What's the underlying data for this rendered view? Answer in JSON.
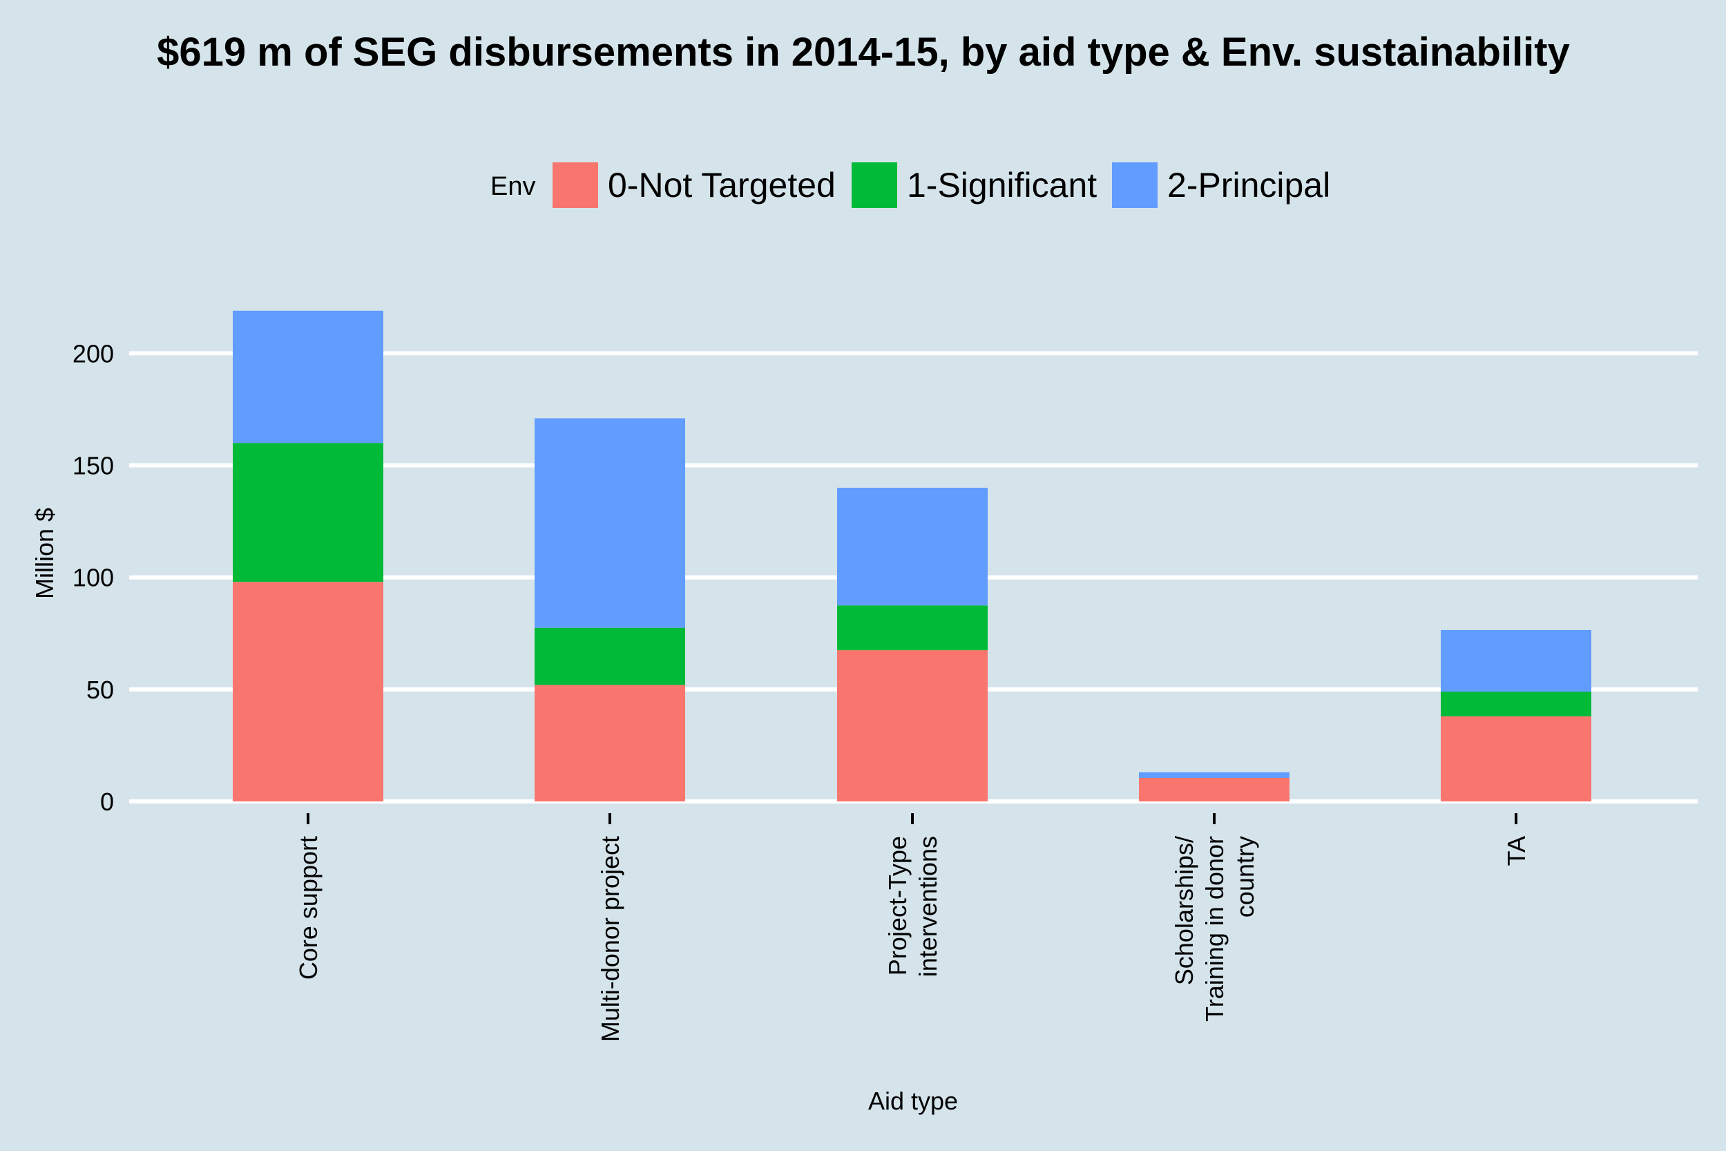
{
  "chart_data": {
    "type": "bar",
    "stacked": true,
    "title": "$619 m of SEG disbursements in 2014-15, by aid type & Env. sustainability",
    "xlabel": "Aid type",
    "ylabel": "Million $",
    "ylim": [
      0,
      220
    ],
    "yticks": [
      0,
      50,
      100,
      150,
      200
    ],
    "grid": true,
    "legend_position": "top",
    "legend_title": "Env",
    "categories": [
      [
        "Core support"
      ],
      [
        "Multi-donor project"
      ],
      [
        "Project-Type",
        "interventions"
      ],
      [
        "Scholarships/",
        "Training in donor",
        "country"
      ],
      [
        "TA"
      ]
    ],
    "series": [
      {
        "name": "0-Not Targeted",
        "color": "#f8766d",
        "values": [
          98,
          52,
          67.5,
          10.5,
          38
        ]
      },
      {
        "name": "1-Significant",
        "color": "#00ba38",
        "values": [
          62,
          25.5,
          20,
          0,
          11
        ]
      },
      {
        "name": "2-Principal",
        "color": "#619cff",
        "values": [
          59,
          93.5,
          52.5,
          2.5,
          27.5
        ]
      }
    ]
  }
}
